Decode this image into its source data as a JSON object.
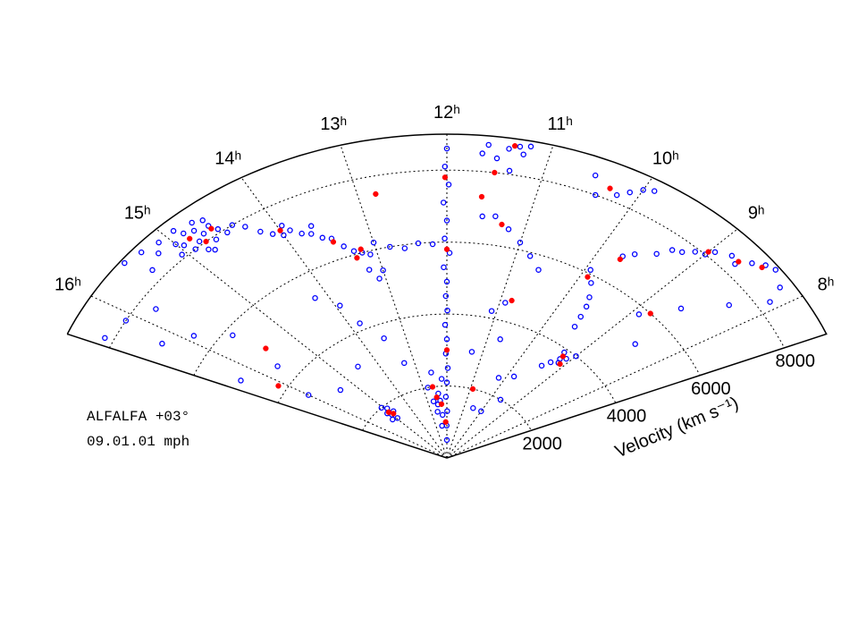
{
  "chart_data": {
    "type": "cone",
    "annotations": [
      "ALFALFA +03°",
      "09.01.01 mph"
    ],
    "y_label": "Velocity (km s⁻¹)",
    "xlim": [
      16.5,
      7.5
    ],
    "ylim": [
      0,
      9000
    ],
    "xticks": [
      {
        "value": 16,
        "label": "16ʰ"
      },
      {
        "value": 15,
        "label": "15ʰ"
      },
      {
        "value": 14,
        "label": "14ʰ"
      },
      {
        "value": 13,
        "label": "13ʰ"
      },
      {
        "value": 12,
        "label": "12ʰ"
      },
      {
        "value": 11,
        "label": "11ʰ"
      },
      {
        "value": 10,
        "label": "10ʰ"
      },
      {
        "value": 9,
        "label": "9ʰ"
      },
      {
        "value": 8,
        "label": "8ʰ"
      }
    ],
    "yticks": [
      2000,
      4000,
      6000,
      8000
    ],
    "grid": true,
    "series": [
      {
        "marker": "open",
        "color": "#0000ff",
        "x": [
          14.7,
          14.8,
          14.75,
          14.9,
          14.6,
          14.85,
          14.95,
          14.65,
          14.7,
          14.8,
          15.0,
          15.1,
          15.2,
          14.55,
          14.9,
          15.05,
          14.75,
          14.6,
          15.3,
          15.5,
          15.4,
          14.5,
          14.3,
          14.2,
          14.1,
          14.0,
          13.9,
          13.8,
          13.7,
          13.6,
          13.5,
          13.4,
          13.3,
          13.2,
          13.1,
          13.0,
          12.8,
          12.6,
          12.4,
          12.2,
          13.65,
          13.95,
          14.4,
          13.2,
          13.1,
          13.0,
          12.0,
          12.02,
          11.98,
          12.05,
          12.0,
          11.97,
          12.03,
          12.0,
          12.04,
          11.99,
          12.02,
          12.0,
          12.05,
          11.96,
          12.03,
          12.0,
          12.04,
          11.98,
          12.02,
          12.0,
          12.3,
          12.5,
          12.4,
          12.6,
          12.7,
          12.2,
          12.8,
          12.45,
          12.55,
          12.35,
          15.0,
          15.1,
          14.9,
          15.2,
          14.8,
          15.05,
          14.95,
          11.3,
          11.2,
          11.4,
          11.25,
          11.6,
          11.65,
          11.5,
          11.35,
          10.0,
          10.1,
          9.9,
          10.2,
          10.5,
          10.4,
          9.7,
          9.6,
          9.4,
          9.2,
          9.0,
          8.95,
          8.8,
          8.6,
          8.5,
          8.4,
          9.1,
          8.7,
          9.3,
          9.93,
          9.8,
          9.67,
          9.6,
          9.55,
          9.5,
          9.2,
          9.1,
          9.3,
          9.25,
          9.15,
          9.4,
          9.0,
          10.6,
          10.8,
          11.0,
          11.2,
          11.4,
          11.56,
          10.9,
          11.1,
          10.7,
          11.3,
          10.2,
          9.8,
          10.5,
          16.1,
          16.3,
          15.9,
          15.7,
          16.0,
          15.6,
          15.4,
          14.5,
          13.93,
          13.8,
          13.5,
          13.3,
          14.2,
          16.2,
          15.8,
          16.4,
          8.3,
          8.1,
          8.6,
          8.9,
          8.5,
          9.6,
          10.0,
          8.2
        ],
        "values": [
          8200,
          8100,
          8400,
          8000,
          8300,
          8500,
          8250,
          7900,
          8600,
          7800,
          8400,
          8700,
          8500,
          8100,
          8700,
          8100,
          7700,
          8500,
          8800,
          8900,
          8300,
          7900,
          7800,
          7500,
          7300,
          7150,
          7200,
          7000,
          6900,
          6700,
          6600,
          6300,
          6100,
          6000,
          5900,
          6200,
          6000,
          5900,
          6000,
          5950,
          7100,
          7400,
          8000,
          5500,
          5200,
          5400,
          500,
          900,
          1300,
          1700,
          2100,
          2500,
          2900,
          3300,
          3700,
          4100,
          4500,
          4900,
          5300,
          5700,
          6100,
          6600,
          7100,
          7600,
          8100,
          8600,
          1200,
          1500,
          1800,
          1300,
          1600,
          2200,
          2000,
          900,
          2400,
          1600,
          1700,
          1800,
          1900,
          1600,
          1750,
          2000,
          1550,
          8800,
          8850,
          8700,
          8600,
          8750,
          8500,
          8400,
          8100,
          8600,
          8400,
          8700,
          8200,
          8500,
          8000,
          6800,
          7000,
          7300,
          7700,
          8000,
          8200,
          8400,
          8600,
          8800,
          8900,
          7900,
          8300,
          7600,
          6100,
          5800,
          5450,
          5200,
          4900,
          4600,
          3700,
          3800,
          3500,
          3900,
          3600,
          3300,
          4000,
          5600,
          5900,
          6200,
          6500,
          6800,
          6760,
          4500,
          4200,
          3500,
          3000,
          2500,
          2700,
          1500,
          8000,
          5000,
          6500,
          4500,
          3500,
          5800,
          3000,
          3200,
          4840,
          4200,
          3600,
          2800,
          5300,
          7000,
          7600,
          8200,
          7500,
          8300,
          6600,
          5800,
          5200,
          2000,
          1500,
          8700
        ]
      },
      {
        "marker": "filled",
        "color": "#ff0000",
        "x": [
          14.75,
          14.85,
          14.6,
          13.5,
          13.2,
          12.0,
          12.0,
          12.02,
          12.3,
          12.5,
          12.1,
          12.6,
          15.0,
          14.9,
          11.35,
          11.5,
          10.3,
          9.0,
          8.7,
          8.5,
          9.7,
          9.9,
          9.2,
          9.1,
          11.3,
          10.8,
          13.3,
          15.5,
          16.1,
          14.0,
          11.6,
          12.8,
          10.9,
          8.8
        ],
        "values": [
          8000,
          8300,
          8200,
          6500,
          6100,
          3000,
          5800,
          7800,
          1500,
          1700,
          1000,
          2000,
          1800,
          1700,
          8800,
          8000,
          8300,
          8100,
          8400,
          8700,
          6700,
          5900,
          3800,
          3600,
          6600,
          4600,
          5900,
          5000,
          4200,
          7300,
          7300,
          7500,
          2000,
          6000
        ]
      }
    ]
  }
}
